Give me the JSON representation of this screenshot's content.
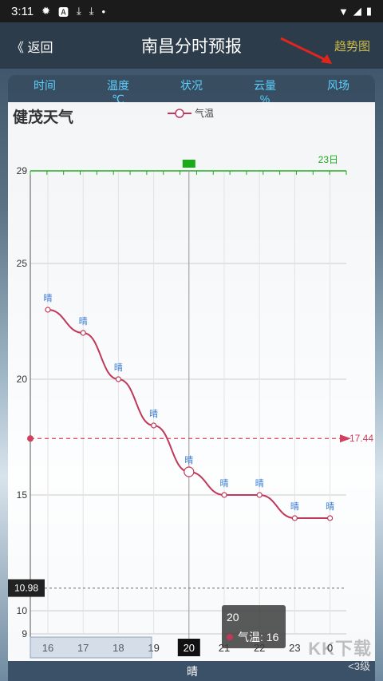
{
  "status_bar": {
    "time": "3:11"
  },
  "header": {
    "back_label": "《 返回",
    "title": "南昌分时预报",
    "trend_label": "趋势图"
  },
  "columns": [
    "时间",
    "温度\n℃",
    "状况",
    "云量\n%",
    "风场"
  ],
  "chart": {
    "title": "健茂天气",
    "legend": "气温",
    "date_label": "23日",
    "avg_label": "17.44",
    "min_label": "10.98"
  },
  "tooltip": {
    "x": "20",
    "series": "气温",
    "value": "16"
  },
  "bottom": {
    "condition": "晴",
    "wind": "<3级"
  },
  "watermark": "KK下载",
  "chart_data": {
    "type": "line",
    "categories": [
      "16",
      "17",
      "18",
      "19",
      "20",
      "21",
      "22",
      "23",
      "0"
    ],
    "series": [
      {
        "name": "气温",
        "values": [
          23,
          22,
          20,
          18,
          16,
          15,
          15,
          14,
          14
        ]
      }
    ],
    "weather_labels": [
      "晴",
      "晴",
      "晴",
      "晴",
      "晴",
      "晴",
      "晴",
      "晴",
      "晴"
    ],
    "yticks": [
      9,
      10,
      15,
      20,
      25,
      29
    ],
    "ylim": [
      9,
      29
    ],
    "selected_category": "20",
    "average": 17.44,
    "lower_marker": 10.98,
    "colors": {
      "line": "#c0395a",
      "label": "#3a7bd5",
      "avg": "#d04060",
      "top_axis": "#22aa22"
    }
  }
}
